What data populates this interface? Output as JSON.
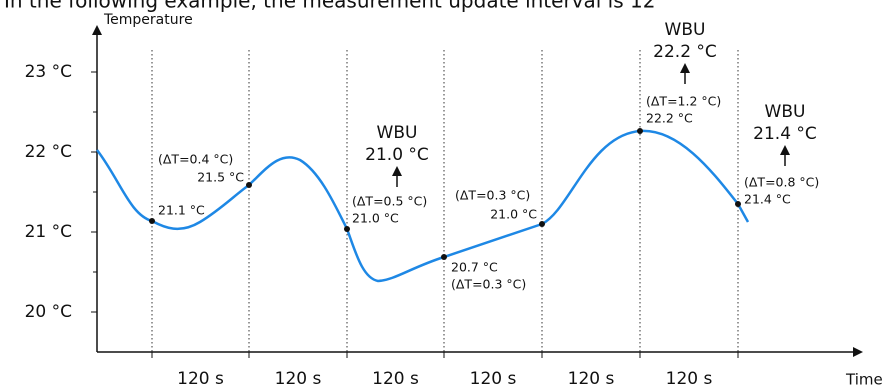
{
  "header": "In the following example, the measurement update interval is 12",
  "y_axis": {
    "label": "Temperature",
    "ticks": [
      "23 °C",
      "22 °C",
      "21 °C",
      "20 °C"
    ]
  },
  "x_axis": {
    "label": "Time",
    "intervals": [
      "120 s",
      "120 s",
      "120 s",
      "120 s",
      "120 s",
      "120 s"
    ]
  },
  "points": [
    {
      "value": "21.1 °C"
    },
    {
      "delta": "(ΔT=0.4 °C)",
      "value": "21.5 °C"
    },
    {
      "delta": "(ΔT=0.5 °C)",
      "value": "21.0 °C"
    },
    {
      "value": "20.7 °C",
      "delta": "(ΔT=0.3 °C)"
    },
    {
      "delta": "(ΔT=0.3 °C)",
      "value": "21.0 °C"
    },
    {
      "delta": "(ΔT=1.2 °C)",
      "value": "22.2 °C"
    },
    {
      "delta": "(ΔT=0.8 °C)",
      "value": "21.4 °C"
    }
  ],
  "wbu": [
    {
      "label": "WBU",
      "value": "21.0 °C"
    },
    {
      "label": "WBU",
      "value": "22.2 °C"
    },
    {
      "label": "WBU",
      "value": "21.4 °C"
    }
  ]
}
